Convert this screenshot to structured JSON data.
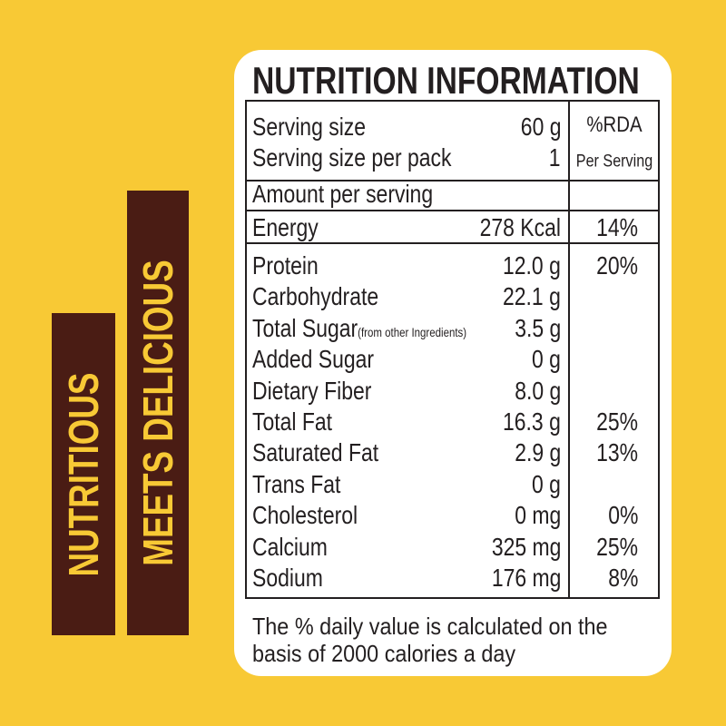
{
  "banners": [
    "NUTRITIOUS",
    "MEETS DELICIOUS"
  ],
  "title": "NUTRITION INFORMATION",
  "serving": [
    {
      "label": "Serving size",
      "value": "60 g"
    },
    {
      "label": "Serving size per pack",
      "value": "1"
    }
  ],
  "rda_header": [
    "%RDA",
    "Per Serving"
  ],
  "amount_label": "Amount per serving",
  "energy": {
    "label": "Energy",
    "value": "278 Kcal",
    "rda": "14%"
  },
  "nutrients": [
    {
      "label": "Protein",
      "value": "12.0 g",
      "rda": "20%"
    },
    {
      "label": "Carbohydrate",
      "value": "22.1 g"
    },
    {
      "label": "Total Sugar",
      "note": "(from other Ingredients)",
      "value": "3.5 g"
    },
    {
      "label": "Added Sugar",
      "value": "0 g"
    },
    {
      "label": "Dietary Fiber",
      "value": "8.0 g"
    },
    {
      "label": "Total Fat",
      "value": "16.3 g",
      "rda": "25%"
    },
    {
      "label": "Saturated Fat",
      "value": "2.9 g",
      "rda": "13%"
    },
    {
      "label": "Trans Fat",
      "value": "0 g"
    },
    {
      "label": "Cholesterol",
      "value": "0 mg",
      "rda": "0%"
    },
    {
      "label": "Calcium",
      "value": "325 mg",
      "rda": "25%"
    },
    {
      "label": "Sodium",
      "value": "176 mg",
      "rda": "8%"
    }
  ],
  "footnote": [
    "The % daily value is calculated on the",
    "basis of 2000 calories a day"
  ]
}
